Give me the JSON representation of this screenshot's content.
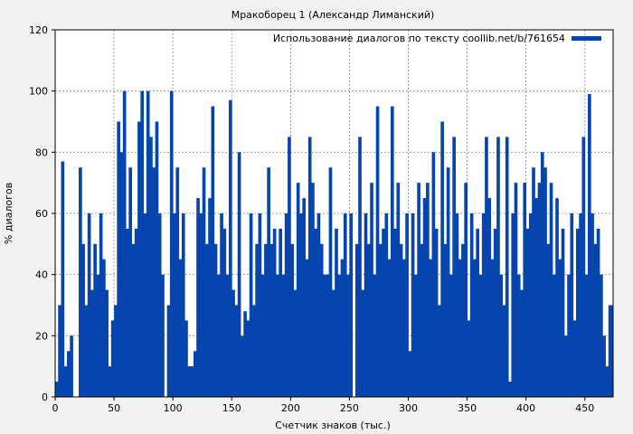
{
  "chart_data": {
    "type": "bar",
    "title": "Мракоборец 1 (Александр Лиманский)",
    "xlabel": "Счетчик знаков (тыс.)",
    "ylabel": "% диалогов",
    "legend": {
      "label": "Использование диалогов по тексту coollib.net/b/761654",
      "placement": "top-right"
    },
    "xlim": [
      0,
      474
    ],
    "ylim": [
      0,
      120
    ],
    "xticks": [
      0,
      50,
      100,
      150,
      200,
      250,
      300,
      350,
      400,
      450
    ],
    "yticks": [
      0,
      20,
      40,
      60,
      80,
      100,
      120
    ],
    "grid": true,
    "bar_color": "#0645ad",
    "bin_width": 2.5,
    "values": [
      5,
      30,
      77,
      10,
      15,
      20,
      0,
      0,
      75,
      50,
      30,
      60,
      35,
      50,
      40,
      60,
      45,
      35,
      10,
      25,
      30,
      90,
      80,
      100,
      55,
      75,
      50,
      55,
      90,
      100,
      60,
      100,
      85,
      75,
      90,
      60,
      40,
      0,
      30,
      100,
      60,
      75,
      45,
      60,
      25,
      10,
      10,
      15,
      65,
      60,
      75,
      50,
      65,
      95,
      50,
      40,
      60,
      55,
      40,
      97,
      35,
      30,
      80,
      20,
      28,
      25,
      60,
      30,
      50,
      60,
      40,
      50,
      75,
      50,
      55,
      40,
      55,
      40,
      60,
      85,
      50,
      35,
      70,
      60,
      65,
      45,
      85,
      70,
      55,
      60,
      50,
      40,
      40,
      75,
      35,
      55,
      40,
      45,
      60,
      40,
      60,
      0,
      50,
      85,
      35,
      60,
      50,
      70,
      40,
      95,
      50,
      55,
      60,
      45,
      95,
      55,
      70,
      50,
      45,
      60,
      15,
      60,
      40,
      70,
      50,
      65,
      70,
      45,
      80,
      55,
      30,
      90,
      50,
      75,
      40,
      85,
      60,
      45,
      50,
      70,
      25,
      60,
      45,
      55,
      40,
      60,
      85,
      65,
      45,
      55,
      85,
      40,
      30,
      85,
      5,
      60,
      70,
      40,
      35,
      70,
      55,
      60,
      75,
      65,
      70,
      80,
      75,
      50,
      70,
      40,
      65,
      45,
      55,
      20,
      40,
      60,
      25,
      55,
      60,
      85,
      40,
      99,
      60,
      50,
      55,
      40,
      20,
      10,
      30,
      30
    ]
  }
}
